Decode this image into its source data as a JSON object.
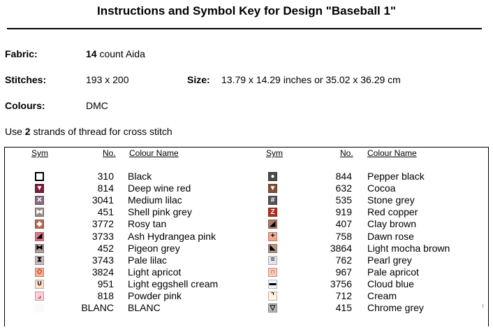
{
  "title": "Instructions and Symbol Key for Design \"Baseball 1\"",
  "fabric": {
    "label": "Fabric:",
    "count": "14",
    "text": " count Aida"
  },
  "stitches": {
    "label": "Stitches:",
    "value": "193 x 200"
  },
  "size": {
    "label": "Size:",
    "value": "13.79 x 14.29 inches or 35.02 x 36.29 cm"
  },
  "colours": {
    "label": "Colours:",
    "value": "DMC"
  },
  "strands": {
    "prefix": "Use ",
    "count": "2",
    "suffix": " strands of thread for cross stitch"
  },
  "table": {
    "headers": {
      "sym": "Sym",
      "no": "No.",
      "name": "Colour Name"
    },
    "left": [
      {
        "no": "310",
        "name": "Black",
        "icon": "square-outline-icon",
        "bg": "#ffffff",
        "fg": "#000000",
        "glyph": ""
      },
      {
        "no": "814",
        "name": "Deep wine red",
        "icon": "triangle-down-icon",
        "bg": "#7a1f3d",
        "fg": "#ffffff",
        "glyph": "▼"
      },
      {
        "no": "3041",
        "name": "Medium lilac",
        "icon": "x-icon",
        "bg": "#8a6a80",
        "fg": "#ffffff",
        "glyph": "✕"
      },
      {
        "no": "451",
        "name": "Shell pink grey",
        "icon": "bowtie-icon",
        "bg": "#9a8a8a",
        "fg": "#ffffff",
        "glyph": "⧓"
      },
      {
        "no": "3772",
        "name": "Rosy tan",
        "icon": "diamond-icon",
        "bg": "#b56a55",
        "fg": "#ffffff",
        "glyph": "◆"
      },
      {
        "no": "3733",
        "name": "Ash Hydrangea pink",
        "icon": "triangle-corner-icon",
        "bg": "#e07a8a",
        "fg": "#000000",
        "glyph": "◢"
      },
      {
        "no": "452",
        "name": "Pigeon grey",
        "icon": "bowtie-icon",
        "bg": "#b0a0a0",
        "fg": "#000000",
        "glyph": "⧓"
      },
      {
        "no": "3743",
        "name": "Pale lilac",
        "icon": "hourglass-icon",
        "bg": "#c8b8c0",
        "fg": "#000000",
        "glyph": "⧗"
      },
      {
        "no": "3824",
        "name": "Light apricot",
        "icon": "diamond-outline-icon",
        "bg": "#f8b090",
        "fg": "#c03010",
        "glyph": "◇"
      },
      {
        "no": "951",
        "name": "Light eggshell cream",
        "icon": "u-shape-icon",
        "bg": "#fce0c8",
        "fg": "#000000",
        "glyph": "∪"
      },
      {
        "no": "818",
        "name": "Powder pink",
        "icon": "corner-icon",
        "bg": "#fcd0d8",
        "fg": "#c02040",
        "glyph": "⌟"
      },
      {
        "no": "BLANC",
        "name": "BLANC",
        "icon": "blank-icon",
        "bg": "#fafafa",
        "fg": "#ffffff",
        "glyph": ""
      }
    ],
    "right": [
      {
        "no": "844",
        "name": "Pepper black",
        "icon": "circle-icon",
        "bg": "#4a4a4a",
        "fg": "#ffffff",
        "glyph": "●"
      },
      {
        "no": "632",
        "name": "Cocoa",
        "icon": "triangle-down-icon",
        "bg": "#80503a",
        "fg": "#ffffff",
        "glyph": "▼"
      },
      {
        "no": "535",
        "name": "Stone grey",
        "icon": "hash-icon",
        "bg": "#555555",
        "fg": "#ffffff",
        "glyph": "#"
      },
      {
        "no": "919",
        "name": "Red copper",
        "icon": "z-icon",
        "bg": "#b03020",
        "fg": "#ffffff",
        "glyph": "Z"
      },
      {
        "no": "407",
        "name": "Clay brown",
        "icon": "triangle-corner-icon",
        "bg": "#b07868",
        "fg": "#000000",
        "glyph": "◢"
      },
      {
        "no": "758",
        "name": "Dawn rose",
        "icon": "plus-icon",
        "bg": "#f0a890",
        "fg": "#000000",
        "glyph": "+"
      },
      {
        "no": "3864",
        "name": "Light mocha brown",
        "icon": "triangle-corner-icon",
        "bg": "#b89a88",
        "fg": "#000000",
        "glyph": "◣"
      },
      {
        "no": "762",
        "name": "Pearl grey",
        "icon": "double-line-icon",
        "bg": "#e4e4ea",
        "fg": "#000000",
        "glyph": "="
      },
      {
        "no": "967",
        "name": "Pale apricot",
        "icon": "arch-icon",
        "bg": "#fcc8b8",
        "fg": "#c02010",
        "glyph": "∩"
      },
      {
        "no": "3756",
        "name": "Cloud blue",
        "icon": "dash-icon",
        "bg": "#f0f4fa",
        "fg": "#000000",
        "glyph": "▬"
      },
      {
        "no": "712",
        "name": "Cream",
        "icon": "corner-icon",
        "bg": "#fdf3e0",
        "fg": "#000000",
        "glyph": "⌝"
      },
      {
        "no": "415",
        "name": "Chrome grey",
        "icon": "triangle-down-outline-icon",
        "bg": "#b4b4bc",
        "fg": "#000000",
        "glyph": "▽"
      }
    ]
  }
}
